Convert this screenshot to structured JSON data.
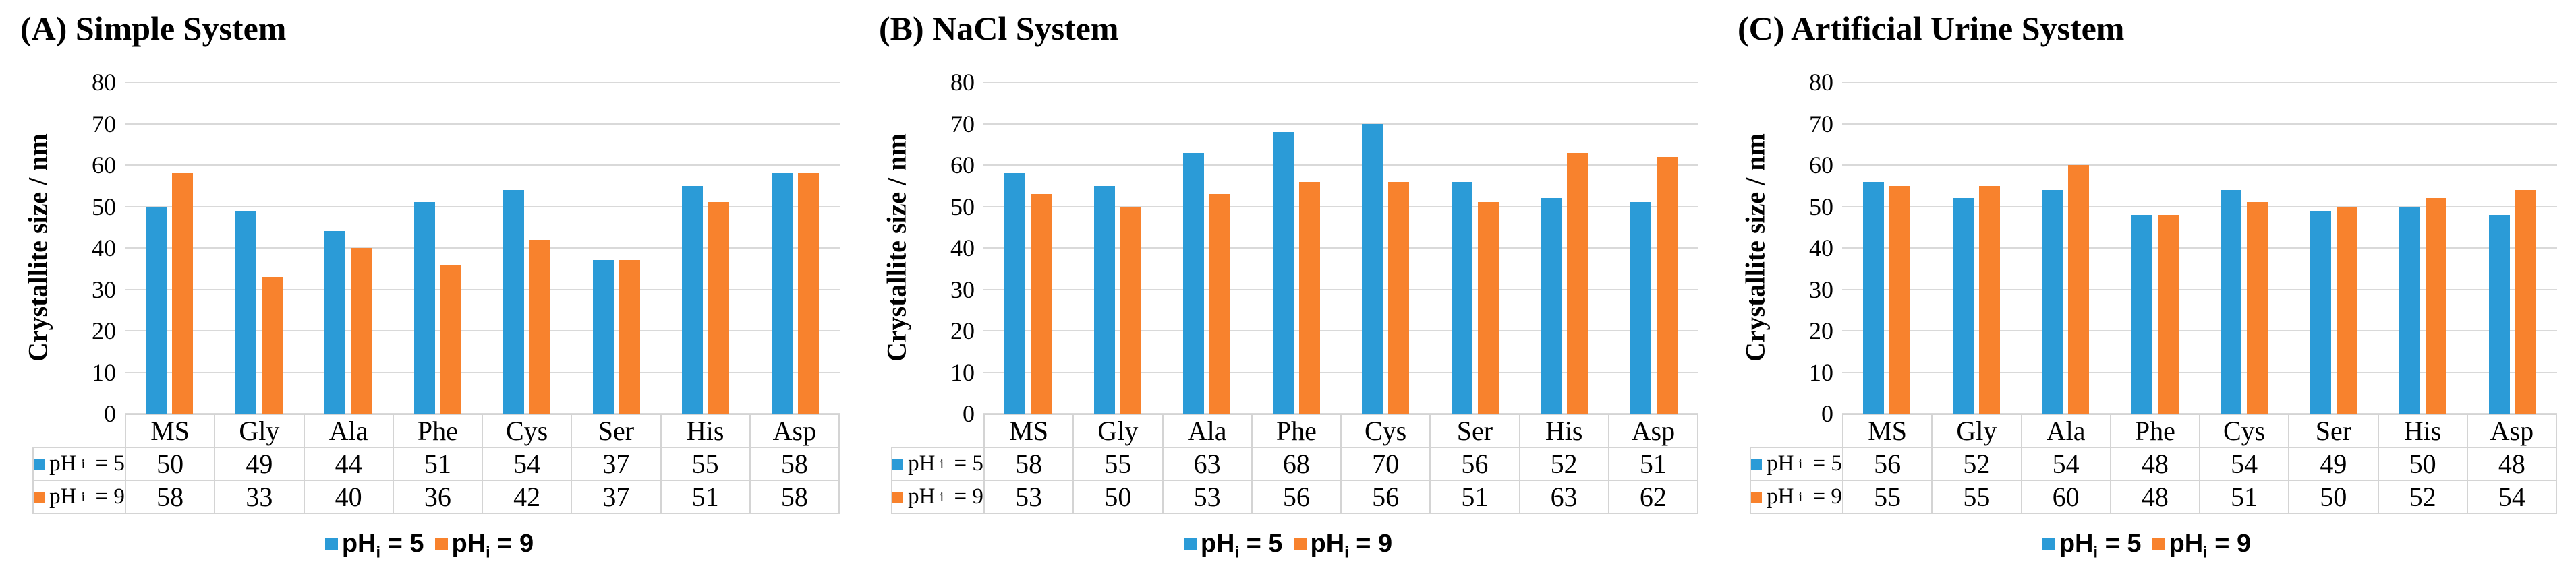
{
  "figure": {
    "y_axis_title": "Crystallite size / nm",
    "y_ticks": [
      0,
      10,
      20,
      30,
      40,
      50,
      60,
      70,
      80
    ],
    "ylim": [
      0,
      80
    ],
    "categories": [
      "MS",
      "Gly",
      "Ala",
      "Phe",
      "Cys",
      "Ser",
      "His",
      "Asp"
    ]
  },
  "series_style": [
    {
      "key": "ph5",
      "label_base": "pH",
      "label_sub": "i",
      "label_rest": " = 5",
      "color": "#2B9BD7"
    },
    {
      "key": "ph9",
      "label_base": "pH",
      "label_sub": "i",
      "label_rest": " = 9",
      "color": "#F8822D"
    }
  ],
  "colors": {
    "bar_blue": "#2B9BD7",
    "bar_orange": "#F8822D",
    "gridline": "#D9D9D9",
    "table_border": "#D4D4D4",
    "text": "#000000",
    "background": "#FFFFFF"
  },
  "chart_data": [
    {
      "type": "bar",
      "title": "(A) Simple System",
      "ylabel": "Crystallite size / nm",
      "ylim": [
        0,
        80
      ],
      "yticks": [
        0,
        10,
        20,
        30,
        40,
        50,
        60,
        70,
        80
      ],
      "grid": true,
      "legend_position": "bottom",
      "categories": [
        "MS",
        "Gly",
        "Ala",
        "Phe",
        "Cys",
        "Ser",
        "His",
        "Asp"
      ],
      "series": [
        {
          "name": "pH_i = 5",
          "values": [
            50,
            49,
            44,
            51,
            54,
            37,
            55,
            58
          ]
        },
        {
          "name": "pH_i = 9",
          "values": [
            58,
            33,
            40,
            36,
            42,
            37,
            51,
            58
          ]
        }
      ]
    },
    {
      "type": "bar",
      "title": "(B) NaCl System",
      "ylabel": "Crystallite size / nm",
      "ylim": [
        0,
        80
      ],
      "yticks": [
        0,
        10,
        20,
        30,
        40,
        50,
        60,
        70,
        80
      ],
      "grid": true,
      "legend_position": "bottom",
      "categories": [
        "MS",
        "Gly",
        "Ala",
        "Phe",
        "Cys",
        "Ser",
        "His",
        "Asp"
      ],
      "series": [
        {
          "name": "pH_i = 5",
          "values": [
            58,
            55,
            63,
            68,
            70,
            56,
            52,
            51
          ]
        },
        {
          "name": "pH_i = 9",
          "values": [
            53,
            50,
            53,
            56,
            56,
            51,
            63,
            62
          ]
        }
      ]
    },
    {
      "type": "bar",
      "title": "(C) Artificial Urine System",
      "ylabel": "Crystallite size / nm",
      "ylim": [
        0,
        80
      ],
      "yticks": [
        0,
        10,
        20,
        30,
        40,
        50,
        60,
        70,
        80
      ],
      "grid": true,
      "legend_position": "bottom",
      "categories": [
        "MS",
        "Gly",
        "Ala",
        "Phe",
        "Cys",
        "Ser",
        "His",
        "Asp"
      ],
      "series": [
        {
          "name": "pH_i = 5",
          "values": [
            56,
            52,
            54,
            48,
            54,
            49,
            50,
            48
          ]
        },
        {
          "name": "pH_i = 9",
          "values": [
            55,
            55,
            60,
            48,
            51,
            50,
            52,
            54
          ]
        }
      ]
    }
  ]
}
